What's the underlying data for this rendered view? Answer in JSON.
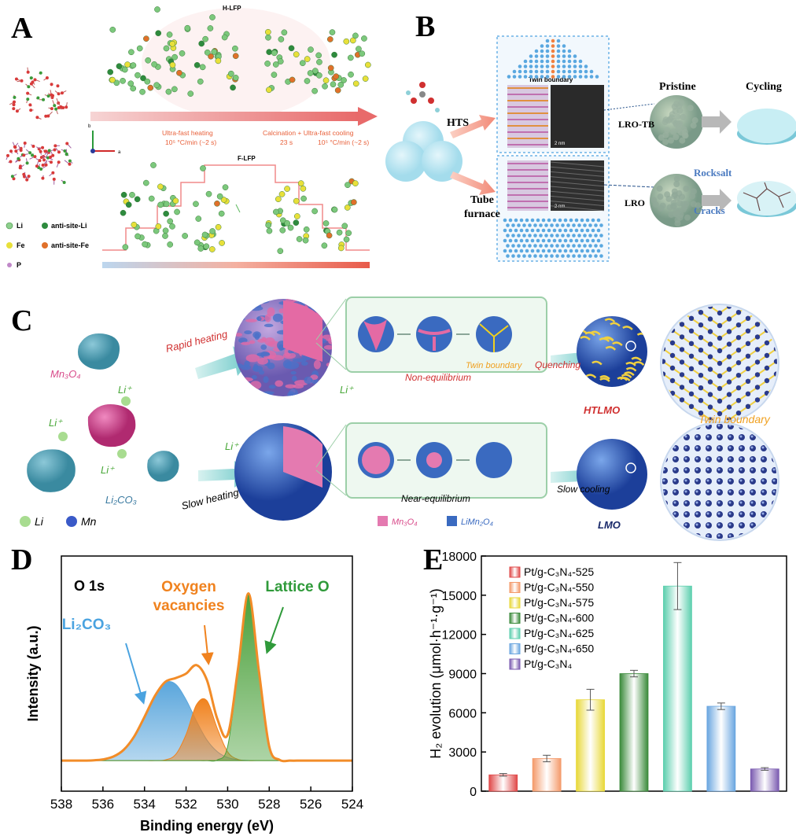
{
  "panels": {
    "A": {
      "label": "A",
      "h_title": "H-LFP",
      "f_title": "F-LFP",
      "heating": [
        "Ultra-fast heating",
        "10⁵ °C/min (~2 s)"
      ],
      "cooling": [
        "Calcination + Ultra-fast cooling",
        "10⁵ °C/min (~2 s)"
      ],
      "cooling_time": "23 s",
      "axes": [
        "b",
        "a"
      ],
      "legend": [
        "Li",
        "anti-site-Li",
        "Fe",
        "anti-site-Fe",
        "P"
      ]
    },
    "B": {
      "label": "B",
      "hts": "HTS",
      "tube": [
        "Tube",
        "furnace"
      ],
      "twin": "Twin boundary",
      "scale": [
        "2 nm",
        "2 nm"
      ],
      "lro_tb": "LRO-TB",
      "lro": "LRO",
      "pristine": "Pristine",
      "cycling": "Cycling",
      "rocksalt": "Rocksalt",
      "cracks": "Cracks"
    },
    "C": {
      "label": "C",
      "rapid": "Rapid heating",
      "slow": "Slow heating",
      "mn3o4": "Mn₃O₄",
      "li2co3": "Li₂CO₃",
      "li_ions": [
        "Li⁺",
        "Li⁺",
        "Li⁺",
        "Li⁺",
        "Li⁺"
      ],
      "twin_small": "Twin boundary",
      "non_eq": "Non-equilibrium",
      "quenching": "Quenching",
      "htlmo": "HTLMO",
      "twin_big": "Twin boundary",
      "near_eq": "Near-equilibrium",
      "slow_cooling": "Slow cooling",
      "lmo": "LMO",
      "legend": [
        "Li",
        "Mn",
        "Mn₃O₄",
        "LiMn₂O₄"
      ]
    }
  },
  "chart_data": [
    {
      "type": "area",
      "label": "D",
      "title": "O 1s",
      "xlabel": "Binding energy (eV)",
      "ylabel": "Intensity (a.u.)",
      "xlim": [
        538,
        524
      ],
      "xticks": [
        538,
        536,
        534,
        532,
        530,
        528,
        526,
        524
      ],
      "ylim": [
        0,
        100
      ],
      "x": [
        538,
        537.5,
        537,
        536.5,
        536,
        535.5,
        535,
        534.5,
        534,
        533.5,
        533,
        532.5,
        532,
        531.5,
        531,
        530.5,
        530,
        529.5,
        529,
        528.5,
        528,
        527.5,
        527,
        526.5,
        526,
        525.5,
        525,
        524.5,
        524
      ],
      "series": [
        {
          "name": "Li₂CO₃",
          "color": "#5aa6dc",
          "fill": true,
          "values": [
            13,
            13,
            13,
            13.1,
            13.5,
            14.7,
            17.6,
            23.2,
            31.6,
            40.5,
            46.2,
            45.5,
            38.9,
            29.8,
            21.8,
            16.8,
            14.3,
            13.4,
            13.1,
            13,
            13,
            13,
            13,
            13,
            13,
            13,
            13,
            13,
            13
          ]
        },
        {
          "name": "Oxygen vacancies",
          "color": "#f0821e",
          "fill": true,
          "values": [
            13,
            13,
            13,
            13,
            13,
            13,
            13,
            13,
            13,
            13,
            13.3,
            15.6,
            24.1,
            36.8,
            38.5,
            26.7,
            16.7,
            13.5,
            13,
            13,
            13,
            13,
            13,
            13,
            13,
            13,
            13,
            13,
            13
          ]
        },
        {
          "name": "Lattice O",
          "color": "#4aa03a",
          "fill": true,
          "values": [
            13,
            13,
            13,
            13,
            13,
            13,
            13,
            13,
            13,
            13,
            13,
            13,
            13,
            13,
            13,
            13.3,
            19,
            51.3,
            84,
            51.3,
            19,
            13.3,
            13,
            13,
            13,
            13,
            13,
            13,
            13
          ]
        },
        {
          "name": "Envelope",
          "color": "#f28c28",
          "fill": false,
          "values": [
            13,
            13,
            13,
            13.1,
            13.5,
            14.7,
            17.6,
            23.2,
            31.6,
            40.5,
            46.5,
            48.1,
            50,
            53.6,
            47.3,
            30.8,
            24,
            52.2,
            84.1,
            51.3,
            19,
            13.3,
            13,
            13,
            13,
            13,
            13,
            13,
            13
          ]
        }
      ],
      "annotations": [
        {
          "lines": [
            "Oxygen",
            "vacancies"
          ],
          "color": "#f0821e"
        },
        {
          "lines": [
            "Lattice O"
          ],
          "color": "#2f9a3a"
        },
        {
          "lines": [
            "Li₂CO₃"
          ],
          "color": "#4aa3e0"
        }
      ]
    },
    {
      "type": "bar",
      "label": "E",
      "ylabel": "H₂ evolution (μmol·h⁻¹·g⁻¹)",
      "ylim": [
        0,
        18000
      ],
      "yticks": [
        0,
        3000,
        6000,
        9000,
        12000,
        15000,
        18000
      ],
      "legend": "upper left",
      "series": [
        {
          "name": "Pt/g-C₃N₄-525",
          "color": "#e04848",
          "values": [
            1250
          ],
          "errors": [
            100
          ]
        },
        {
          "name": "Pt/g-C₃N₄-550",
          "color": "#f49a6a",
          "values": [
            2500
          ],
          "errors": [
            250
          ]
        },
        {
          "name": "Pt/g-C₃N₄-575",
          "color": "#e8d838",
          "values": [
            7000
          ],
          "errors": [
            800
          ]
        },
        {
          "name": "Pt/g-C₃N₄-600",
          "color": "#3a8a3a",
          "values": [
            9000
          ],
          "errors": [
            250
          ]
        },
        {
          "name": "Pt/g-C₃N₄-625",
          "color": "#5ccfae",
          "values": [
            15700
          ],
          "errors": [
            1800
          ]
        },
        {
          "name": "Pt/g-C₃N₄-650",
          "color": "#6aa6e0",
          "values": [
            6500
          ],
          "errors": [
            250
          ]
        },
        {
          "name": "Pt/g-C₃N₄",
          "color": "#7a5ab0",
          "values": [
            1700
          ],
          "errors": [
            100
          ]
        }
      ]
    }
  ]
}
